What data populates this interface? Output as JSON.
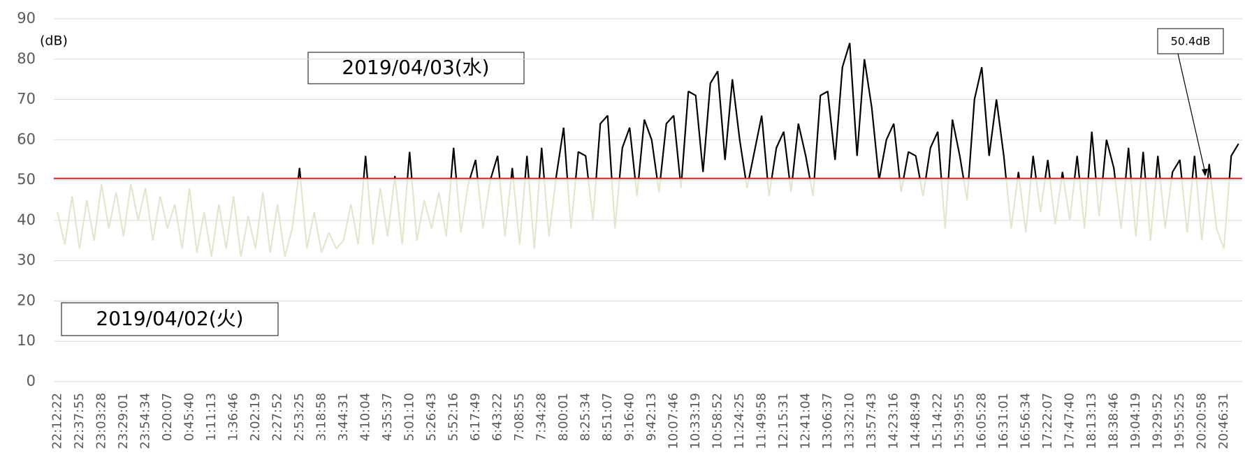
{
  "chart_data": {
    "type": "line",
    "y_label": "(dB)",
    "annotations": [
      "2019/04/03(水)",
      "2019/04/02(火)"
    ],
    "threshold": {
      "value": 50.4,
      "label": "50.4dB",
      "color": "#e02020"
    },
    "color_above": "#000000",
    "color_below": "#dfe8cf",
    "ylim": [
      0,
      90
    ],
    "yticks": [
      0,
      10,
      20,
      30,
      40,
      50,
      60,
      70,
      80,
      90
    ],
    "grid": true,
    "categories": [
      "22:12:22",
      null,
      null,
      "22:37:55",
      null,
      null,
      "23:03:28",
      null,
      null,
      "23:29:01",
      null,
      null,
      "23:54:34",
      null,
      null,
      "0:20:07",
      null,
      null,
      "0:45:40",
      null,
      null,
      "1:11:13",
      null,
      null,
      "1:36:46",
      null,
      null,
      "2:02:19",
      null,
      null,
      "2:27:52",
      null,
      null,
      "2:53:25",
      null,
      null,
      "3:18:58",
      null,
      null,
      "3:44:31",
      null,
      null,
      "4:10:04",
      null,
      null,
      "4:35:37",
      null,
      null,
      "5:01:10",
      null,
      null,
      "5:26:43",
      null,
      null,
      "5:52:16",
      null,
      null,
      "6:17:49",
      null,
      null,
      "6:43:22",
      null,
      null,
      "7:08:55",
      null,
      null,
      "7:34:28",
      null,
      null,
      "8:00:01",
      null,
      null,
      "8:25:34",
      null,
      null,
      "8:51:07",
      null,
      null,
      "9:16:40",
      null,
      null,
      "9:42:13",
      null,
      null,
      "10:07:46",
      null,
      null,
      "10:33:19",
      null,
      null,
      "10:58:52",
      null,
      null,
      "11:24:25",
      null,
      null,
      "11:49:58",
      null,
      null,
      "12:15:31",
      null,
      null,
      "12:41:04",
      null,
      null,
      "13:06:37",
      null,
      null,
      "13:32:10",
      null,
      null,
      "13:57:43",
      null,
      null,
      "14:23:16",
      null,
      null,
      "14:48:49",
      null,
      null,
      "15:14:22",
      null,
      null,
      "15:39:55",
      null,
      null,
      "16:05:28",
      null,
      null,
      "16:31:01",
      null,
      null,
      "16:56:34",
      null,
      null,
      "17:22:07",
      null,
      null,
      "17:47:40",
      null,
      null,
      "18:13:13",
      null,
      null,
      "18:38:46",
      null,
      null,
      "19:04:19",
      null,
      null,
      "19:29:52",
      null,
      null,
      "19:55:25",
      null,
      null,
      "20:20:58",
      null,
      null,
      "20:46:31",
      null,
      null
    ],
    "values": [
      42,
      34,
      46,
      33,
      45,
      35,
      49,
      38,
      47,
      36,
      49,
      40,
      48,
      35,
      46,
      38,
      44,
      33,
      48,
      32,
      42,
      31,
      44,
      33,
      46,
      31,
      41,
      33,
      47,
      32,
      44,
      31,
      38,
      53,
      33,
      42,
      32,
      37,
      33,
      35,
      44,
      34,
      56,
      34,
      48,
      36,
      51,
      34,
      57,
      35,
      45,
      38,
      47,
      36,
      58,
      37,
      49,
      55,
      38,
      50,
      56,
      36,
      53,
      34,
      56,
      33,
      58,
      36,
      51,
      63,
      38,
      57,
      56,
      40,
      64,
      66,
      38,
      58,
      63,
      46,
      65,
      60,
      47,
      64,
      66,
      48,
      72,
      71,
      52,
      74,
      77,
      55,
      75,
      60,
      48,
      57,
      66,
      46,
      58,
      62,
      47,
      64,
      56,
      46,
      71,
      72,
      55,
      78,
      84,
      56,
      80,
      68,
      50,
      60,
      64,
      47,
      57,
      56,
      46,
      58,
      62,
      38,
      65,
      56,
      45,
      70,
      78,
      56,
      70,
      56,
      38,
      52,
      37,
      56,
      42,
      55,
      39,
      52,
      40,
      56,
      38,
      62,
      41,
      60,
      53,
      38,
      58,
      36,
      57,
      35,
      56,
      38,
      52,
      55,
      37,
      56,
      35,
      54,
      38,
      33,
      56,
      59
    ]
  }
}
